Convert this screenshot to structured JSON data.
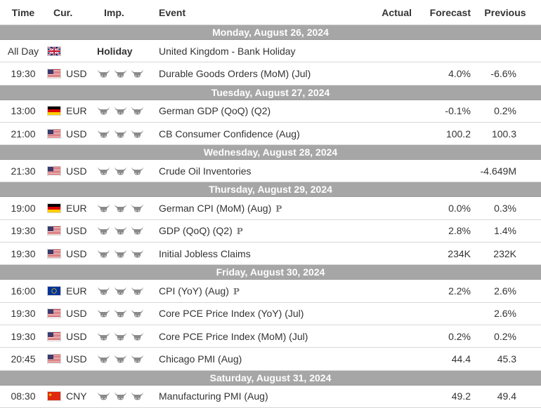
{
  "headers": {
    "time": "Time",
    "currency": "Cur.",
    "importance": "Imp.",
    "event": "Event",
    "actual": "Actual",
    "forecast": "Forecast",
    "previous": "Previous"
  },
  "colors": {
    "day_band": "#a6a6a6",
    "bull_icon": "#8a8a8a"
  },
  "days": [
    {
      "label": "Monday, August 26, 2024",
      "events": [
        {
          "time": "All Day",
          "flag": "gb",
          "flag_icon": "uk-flag-icon",
          "currency": "",
          "importance_label": "Holiday",
          "event": "United Kingdom - Bank Holiday",
          "prelim": "",
          "actual": "",
          "forecast": "",
          "previous": ""
        },
        {
          "time": "19:30",
          "flag": "us",
          "flag_icon": "us-flag-icon",
          "currency": "USD",
          "importance": 3,
          "event": "Durable Goods Orders (MoM) (Jul)",
          "prelim": "",
          "actual": "",
          "forecast": "4.0%",
          "previous": "-6.6%"
        }
      ]
    },
    {
      "label": "Tuesday, August 27, 2024",
      "events": [
        {
          "time": "13:00",
          "flag": "de",
          "flag_icon": "germany-flag-icon",
          "currency": "EUR",
          "importance": 3,
          "event": "German GDP (QoQ) (Q2)",
          "prelim": "",
          "actual": "",
          "forecast": "-0.1%",
          "previous": "0.2%"
        },
        {
          "time": "21:00",
          "flag": "us",
          "flag_icon": "us-flag-icon",
          "currency": "USD",
          "importance": 3,
          "event": "CB Consumer Confidence (Aug)",
          "prelim": "",
          "actual": "",
          "forecast": "100.2",
          "previous": "100.3"
        }
      ]
    },
    {
      "label": "Wednesday, August 28, 2024",
      "events": [
        {
          "time": "21:30",
          "flag": "us",
          "flag_icon": "us-flag-icon",
          "currency": "USD",
          "importance": 3,
          "event": "Crude Oil Inventories",
          "prelim": "",
          "actual": "",
          "forecast": "",
          "previous": "-4.649M"
        }
      ]
    },
    {
      "label": "Thursday, August 29, 2024",
      "events": [
        {
          "time": "19:00",
          "flag": "de",
          "flag_icon": "germany-flag-icon",
          "currency": "EUR",
          "importance": 3,
          "event": "German CPI (MoM) (Aug)",
          "prelim": "P",
          "actual": "",
          "forecast": "0.0%",
          "previous": "0.3%"
        },
        {
          "time": "19:30",
          "flag": "us",
          "flag_icon": "us-flag-icon",
          "currency": "USD",
          "importance": 3,
          "event": "GDP (QoQ) (Q2)",
          "prelim": "P",
          "actual": "",
          "forecast": "2.8%",
          "previous": "1.4%"
        },
        {
          "time": "19:30",
          "flag": "us",
          "flag_icon": "us-flag-icon",
          "currency": "USD",
          "importance": 3,
          "event": "Initial Jobless Claims",
          "prelim": "",
          "actual": "",
          "forecast": "234K",
          "previous": "232K"
        }
      ]
    },
    {
      "label": "Friday, August 30, 2024",
      "events": [
        {
          "time": "16:00",
          "flag": "eu",
          "flag_icon": "eu-flag-icon",
          "currency": "EUR",
          "importance": 3,
          "event": "CPI (YoY) (Aug)",
          "prelim": "P",
          "actual": "",
          "forecast": "2.2%",
          "previous": "2.6%"
        },
        {
          "time": "19:30",
          "flag": "us",
          "flag_icon": "us-flag-icon",
          "currency": "USD",
          "importance": 3,
          "event": "Core PCE Price Index (YoY) (Jul)",
          "prelim": "",
          "actual": "",
          "forecast": "",
          "previous": "2.6%"
        },
        {
          "time": "19:30",
          "flag": "us",
          "flag_icon": "us-flag-icon",
          "currency": "USD",
          "importance": 3,
          "event": "Core PCE Price Index (MoM) (Jul)",
          "prelim": "",
          "actual": "",
          "forecast": "0.2%",
          "previous": "0.2%"
        },
        {
          "time": "20:45",
          "flag": "us",
          "flag_icon": "us-flag-icon",
          "currency": "USD",
          "importance": 3,
          "event": "Chicago PMI (Aug)",
          "prelim": "",
          "actual": "",
          "forecast": "44.4",
          "previous": "45.3"
        }
      ]
    },
    {
      "label": "Saturday, August 31, 2024",
      "events": [
        {
          "time": "08:30",
          "flag": "cn",
          "flag_icon": "china-flag-icon",
          "currency": "CNY",
          "importance": 3,
          "event": "Manufacturing PMI (Aug)",
          "prelim": "",
          "actual": "",
          "forecast": "49.2",
          "previous": "49.4"
        }
      ]
    }
  ]
}
